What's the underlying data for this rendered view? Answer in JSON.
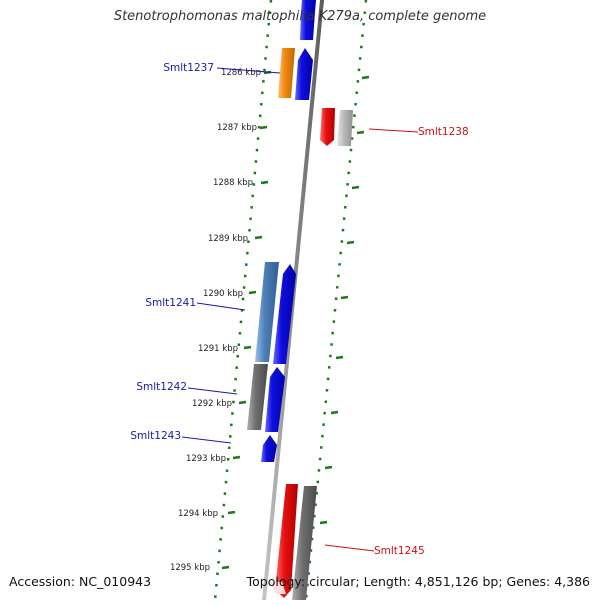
{
  "title": "Stenotrophomonas maltophilia K279a, complete genome",
  "footer": {
    "accession": "Accession: NC_010943",
    "summary": "Topology: circular; Length: 4,851,126 bp; Genes: 4,386"
  },
  "colors": {
    "backbone": "#8c8c8c",
    "tick_green": "#1a7a1a",
    "plus_strand_label": "#1a1aa8",
    "minus_strand_label": "#d01010",
    "blue_gene": "#1010e0",
    "orange_gene": "#f08a10",
    "steelblue_gene": "#4d7fb8",
    "gray_gene": "#707070",
    "lightgray_gene": "#b8b8b8",
    "red_gene": "#e81010"
  },
  "kbp_ticks": [
    {
      "label": "1286 kbp",
      "kbp": 1286
    },
    {
      "label": "1287 kbp",
      "kbp": 1287
    },
    {
      "label": "1288 kbp",
      "kbp": 1288
    },
    {
      "label": "1289 kbp",
      "kbp": 1289
    },
    {
      "label": "1290 kbp",
      "kbp": 1290
    },
    {
      "label": "1291 kbp",
      "kbp": 1291
    },
    {
      "label": "1292 kbp",
      "kbp": 1292
    },
    {
      "label": "1293 kbp",
      "kbp": 1293
    },
    {
      "label": "1294 kbp",
      "kbp": 1294
    },
    {
      "label": "1295 kbp",
      "kbp": 1295
    }
  ],
  "gene_labels": [
    {
      "name": "Smlt1237",
      "strand": "plus"
    },
    {
      "name": "Smlt1238",
      "strand": "minus"
    },
    {
      "name": "Smlt1241",
      "strand": "plus"
    },
    {
      "name": "Smlt1242",
      "strand": "plus"
    },
    {
      "name": "Smlt1243",
      "strand": "plus"
    },
    {
      "name": "Smlt1245",
      "strand": "minus"
    }
  ]
}
